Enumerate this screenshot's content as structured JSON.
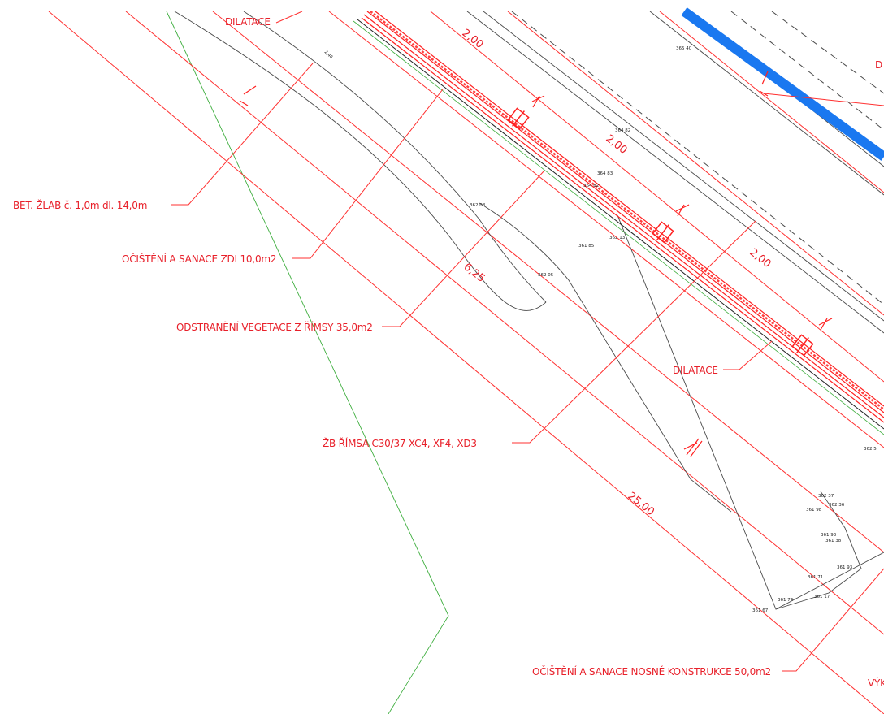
{
  "annotations": {
    "dilatace_top": "DILATACE",
    "bet_zlab": "BET. ŽLAB č. 1,0m dl. 14,0m",
    "ocisteni_zdi": "OČIŠTĚNÍ A SANACE ZDI 10,0m2",
    "odstraneni_vegetace": "ODSTRANĚNÍ VEGETACE Z ŘÍMSY 35,0m2",
    "dilatace_mid": "DILATACE",
    "zb_rimsa": "ŽB ŘÍMSA C30/37 XC4, XF4, XD3",
    "ocisteni_nosne": "OČIŠTĚNÍ A SANACE NOSNÉ KONSTRUKCE 50,0m2",
    "edge_right_top": "D",
    "edge_right_bottom": "VÝK"
  },
  "dimensions": {
    "d1": "2,00",
    "d2": "2,00",
    "d3": "2,00",
    "d4": "6,25",
    "d5": "25,00"
  },
  "points": {
    "p1": "2,46",
    "p2": "365 40",
    "p3": "364 82",
    "p4": "364 83",
    "p5": "364 82",
    "p6": "362 08",
    "p7": "362 13",
    "p8": "361 85",
    "p9": "362 05",
    "p10": "362 5",
    "p11": "362 37",
    "p12": "361 98",
    "p13": "362 36",
    "p14": "361 93",
    "p15": "361 38",
    "p16": "361 93",
    "p17": "361 71",
    "p18": "361 17",
    "p19": "361 74",
    "p20": "361 67"
  },
  "colors": {
    "annotation": "#e8202a",
    "dimension_lines": "#ff3030",
    "terrain": "#4a4a4a",
    "boundary": "#3fae3f",
    "pipe": "#1a78f0"
  }
}
